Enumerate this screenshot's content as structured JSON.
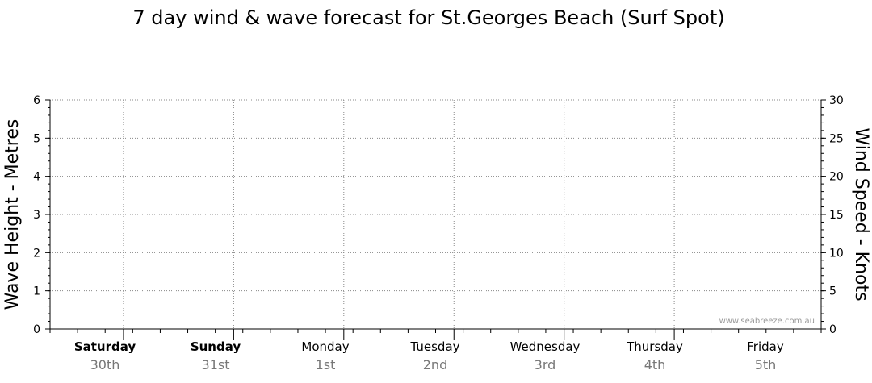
{
  "chart_data": {
    "type": "line",
    "title": "7 day wind & wave forecast for St.Georges Beach (Surf Spot)",
    "ylabel_left": "Wave Height - Metres",
    "ylabel_right": "Wind Speed - Knots",
    "ylim_left": [
      0,
      6
    ],
    "yticks_left": [
      "0",
      "1",
      "2",
      "3",
      "4",
      "5",
      "6"
    ],
    "ylim_right": [
      0,
      30
    ],
    "yticks_right": [
      "0",
      "5",
      "10",
      "15",
      "20",
      "25",
      "30"
    ],
    "grid": true,
    "days": [
      {
        "name": "Saturday",
        "date": "30th",
        "bold": true
      },
      {
        "name": "Sunday",
        "date": "31st",
        "bold": true
      },
      {
        "name": "Monday",
        "date": "1st",
        "bold": false
      },
      {
        "name": "Tuesday",
        "date": "2nd",
        "bold": false
      },
      {
        "name": "Wednesday",
        "date": "3rd",
        "bold": false
      },
      {
        "name": "Thursday",
        "date": "4th",
        "bold": false
      },
      {
        "name": "Friday",
        "date": "5th",
        "bold": false
      }
    ],
    "series": [],
    "watermark": "www.seabreeze.com.au"
  }
}
